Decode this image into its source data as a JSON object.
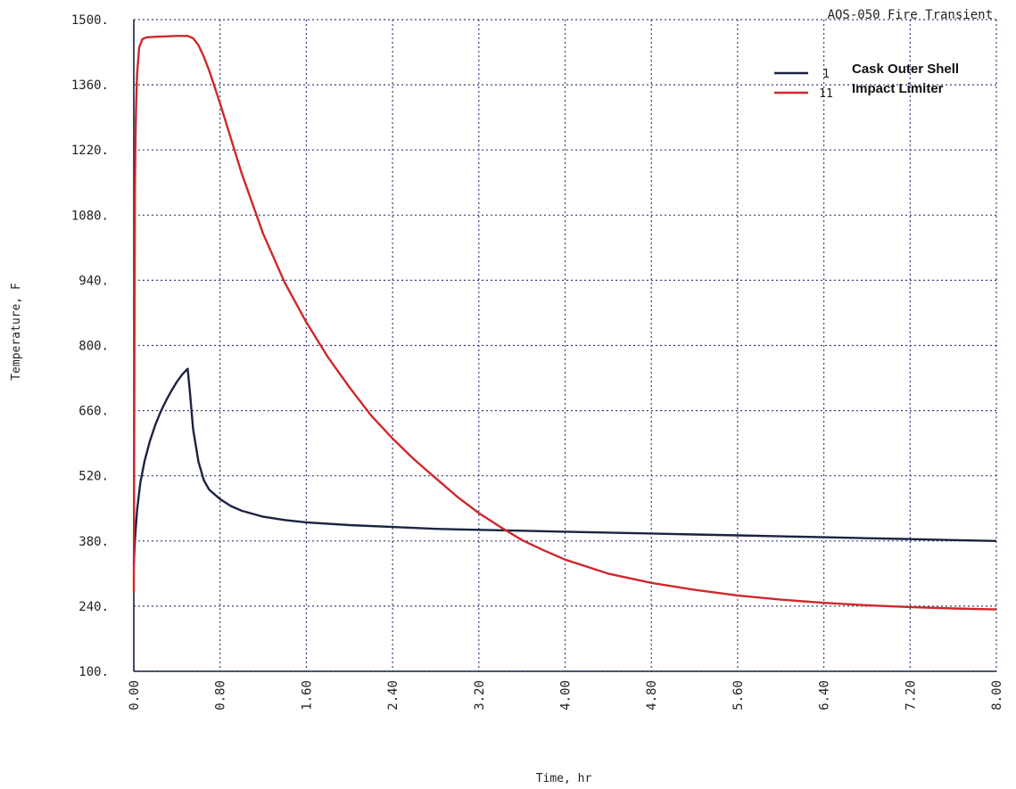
{
  "chart_data": {
    "type": "line",
    "title": "AOS-050 Fire Transient",
    "xlabel": "Time, hr",
    "ylabel": "Temperature, F",
    "xlim": [
      0,
      8
    ],
    "ylim": [
      100,
      1500
    ],
    "grid": true,
    "legend_position": "top-right",
    "x_ticks": [
      "0.00",
      "0.80",
      "1.60",
      "2.40",
      "3.20",
      "4.00",
      "4.80",
      "5.60",
      "6.40",
      "7.20",
      "8.00"
    ],
    "y_ticks": [
      "100.",
      "240.",
      "380.",
      "520.",
      "660.",
      "800.",
      "940.",
      "1080.",
      "1220.",
      "1360.",
      "1500."
    ],
    "series": [
      {
        "name": "Cask Outer Shell",
        "marker": "1",
        "color": "#1c2340",
        "points": [
          [
            0.0,
            330
          ],
          [
            0.01,
            380
          ],
          [
            0.03,
            445
          ],
          [
            0.06,
            505
          ],
          [
            0.1,
            552
          ],
          [
            0.15,
            595
          ],
          [
            0.2,
            630
          ],
          [
            0.25,
            658
          ],
          [
            0.3,
            682
          ],
          [
            0.35,
            703
          ],
          [
            0.4,
            722
          ],
          [
            0.45,
            738
          ],
          [
            0.5,
            750
          ],
          [
            0.52,
            700
          ],
          [
            0.55,
            620
          ],
          [
            0.6,
            550
          ],
          [
            0.65,
            510
          ],
          [
            0.7,
            490
          ],
          [
            0.8,
            470
          ],
          [
            0.9,
            455
          ],
          [
            1.0,
            445
          ],
          [
            1.2,
            432
          ],
          [
            1.4,
            425
          ],
          [
            1.6,
            420
          ],
          [
            2.0,
            414
          ],
          [
            2.4,
            410
          ],
          [
            2.8,
            406
          ],
          [
            3.2,
            404
          ],
          [
            3.6,
            402
          ],
          [
            4.0,
            400
          ],
          [
            4.4,
            398
          ],
          [
            4.8,
            396
          ],
          [
            5.2,
            394
          ],
          [
            5.6,
            392
          ],
          [
            6.0,
            390
          ],
          [
            6.4,
            388
          ],
          [
            6.8,
            386
          ],
          [
            7.2,
            384
          ],
          [
            7.6,
            382
          ],
          [
            8.0,
            380
          ]
        ]
      },
      {
        "name": "Impact Limiter",
        "marker": "11",
        "color": "#d0272a",
        "points": [
          [
            0.0,
            270
          ],
          [
            0.005,
            700
          ],
          [
            0.01,
            1130
          ],
          [
            0.015,
            1230
          ],
          [
            0.02,
            1300
          ],
          [
            0.03,
            1380
          ],
          [
            0.05,
            1440
          ],
          [
            0.08,
            1458
          ],
          [
            0.12,
            1462
          ],
          [
            0.2,
            1463
          ],
          [
            0.3,
            1464
          ],
          [
            0.4,
            1465
          ],
          [
            0.5,
            1465
          ],
          [
            0.55,
            1460
          ],
          [
            0.6,
            1445
          ],
          [
            0.65,
            1420
          ],
          [
            0.7,
            1390
          ],
          [
            0.75,
            1355
          ],
          [
            0.8,
            1320
          ],
          [
            0.9,
            1245
          ],
          [
            1.0,
            1170
          ],
          [
            1.2,
            1040
          ],
          [
            1.4,
            935
          ],
          [
            1.6,
            850
          ],
          [
            1.8,
            775
          ],
          [
            2.0,
            710
          ],
          [
            2.2,
            650
          ],
          [
            2.4,
            600
          ],
          [
            2.6,
            555
          ],
          [
            2.8,
            515
          ],
          [
            3.0,
            475
          ],
          [
            3.2,
            440
          ],
          [
            3.4,
            410
          ],
          [
            3.6,
            382
          ],
          [
            3.8,
            360
          ],
          [
            4.0,
            340
          ],
          [
            4.4,
            310
          ],
          [
            4.8,
            290
          ],
          [
            5.2,
            275
          ],
          [
            5.6,
            263
          ],
          [
            6.0,
            254
          ],
          [
            6.4,
            247
          ],
          [
            6.8,
            242
          ],
          [
            7.2,
            238
          ],
          [
            7.6,
            235
          ],
          [
            8.0,
            233
          ]
        ]
      }
    ]
  }
}
